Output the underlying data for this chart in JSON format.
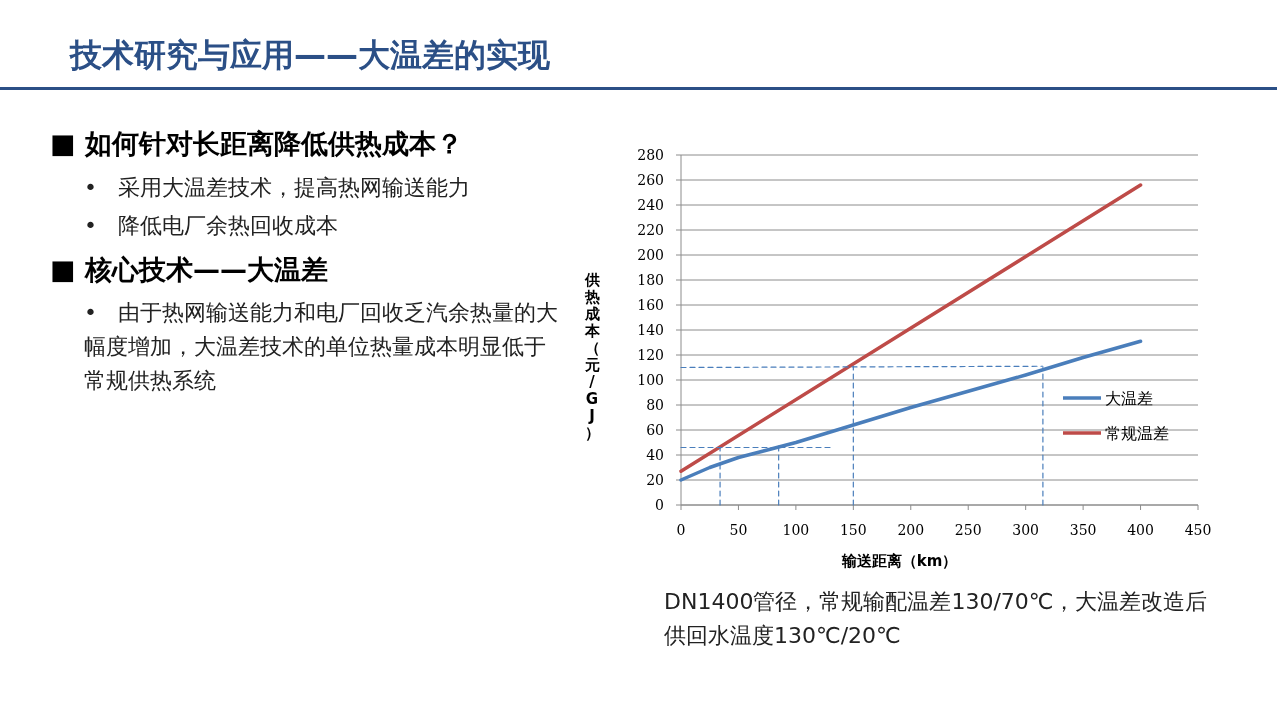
{
  "chart_data": {
    "type": "line",
    "title": "技术研究与应用——大温差的实现",
    "xlabel": "输送距离（km）",
    "ylabel": "供热成本（元/GJ）",
    "xlim": [
      0,
      450
    ],
    "xticks": [
      0,
      50,
      100,
      150,
      200,
      250,
      300,
      350,
      400,
      450
    ],
    "ylim": [
      0,
      280
    ],
    "yticks": [
      0,
      20,
      40,
      60,
      80,
      100,
      120,
      140,
      160,
      180,
      200,
      220,
      240,
      260,
      280
    ],
    "grid": "y",
    "legend": "right",
    "marker": "none",
    "series": [
      {
        "name": "大温差",
        "color": "#4a7ebb",
        "x": [
          0,
          25,
          50,
          100,
          150,
          200,
          250,
          300,
          350,
          400
        ],
        "values": [
          20,
          30,
          38,
          50,
          64,
          78,
          91,
          104,
          118,
          131
        ]
      },
      {
        "name": "常规温差",
        "color": "#be4b48",
        "x": [
          0,
          400
        ],
        "values": [
          27,
          256
        ]
      },
      {
        "color": "#4a7ebb",
        "line_style": "dashed",
        "x": [
          0,
          130
        ],
        "values": [
          46,
          46
        ]
      },
      {
        "color": "#4a7ebb",
        "line_style": "dashed",
        "x": [
          34,
          34
        ],
        "values": [
          0,
          46
        ]
      },
      {
        "color": "#4a7ebb",
        "line_style": "dashed",
        "x": [
          85,
          85
        ],
        "values": [
          0,
          50
        ]
      },
      {
        "color": "#4a7ebb",
        "line_style": "dashed",
        "x": [
          0,
          315
        ],
        "values": [
          110,
          111
        ]
      },
      {
        "color": "#4a7ebb",
        "line_style": "dashed",
        "x": [
          150,
          150
        ],
        "values": [
          0,
          111
        ]
      },
      {
        "color": "#4a7ebb",
        "line_style": "dashed",
        "x": [
          315,
          315
        ],
        "values": [
          0,
          110
        ]
      }
    ],
    "annotations": [
      "■ 如何针对长距离降低供热成本？",
      "•   采用大温差技术，提高热网输送能力",
      "•   降低电厂余热回收成本",
      "■ 核心技术——大温差",
      "•   由于热网输送能力和电厂回收乏汽余热量的大幅度增加，大温差技术的单位热量成本明显低于常规供热系统",
      "DN1400管径，常规输配温差130/70℃，大温差改造后供回水温度130℃/20℃"
    ]
  }
}
